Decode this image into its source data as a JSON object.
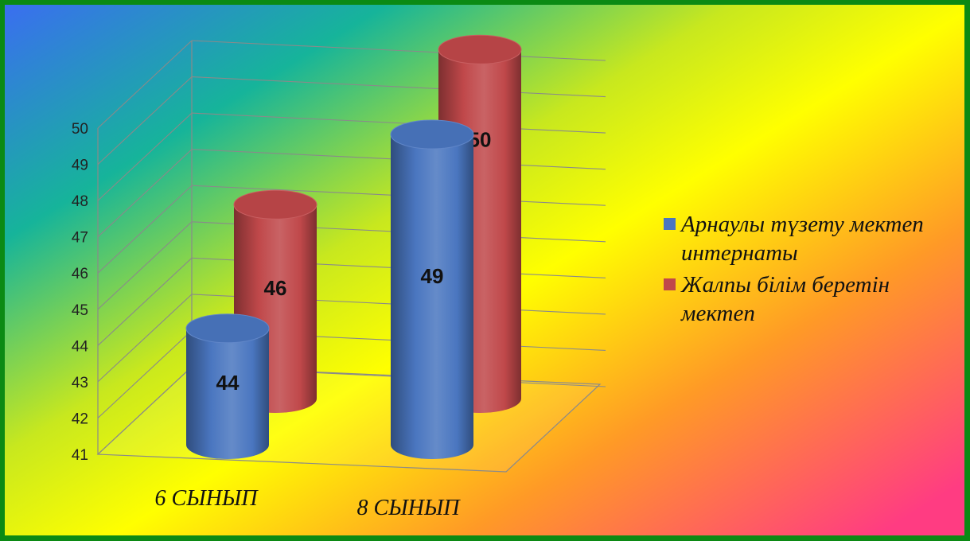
{
  "chart_data": {
    "type": "bar",
    "categories": [
      "6 СЫНЫП",
      "8 СЫНЫП"
    ],
    "series": [
      {
        "name": "Арнаулы түзету мектеп интернаты",
        "values": [
          44,
          49
        ],
        "color": "#4a76c0"
      },
      {
        "name": "Жалпы білім беретін мектеп",
        "values": [
          46,
          50
        ],
        "color": "#c0484a"
      }
    ],
    "y_ticks": [
      "41",
      "42",
      "43",
      "44",
      "45",
      "46",
      "47",
      "48",
      "49",
      "50"
    ],
    "ylim": [
      41,
      50
    ],
    "data_labels": [
      "44",
      "49",
      "46",
      "50"
    ],
    "grid": true,
    "legend_position": "right",
    "style": "3d-cylinder"
  },
  "legend": {
    "items": [
      {
        "label": "Арнаулы түзету мектеп интернаты",
        "color": "#4a76c0"
      },
      {
        "label": "Жалпы білім беретін мектеп",
        "color": "#c0484a"
      }
    ]
  },
  "background_colors": [
    "#3a6ef0",
    "#16b49a",
    "#c8e81e",
    "#ffff00",
    "#ff9a26",
    "#ff3c82"
  ]
}
